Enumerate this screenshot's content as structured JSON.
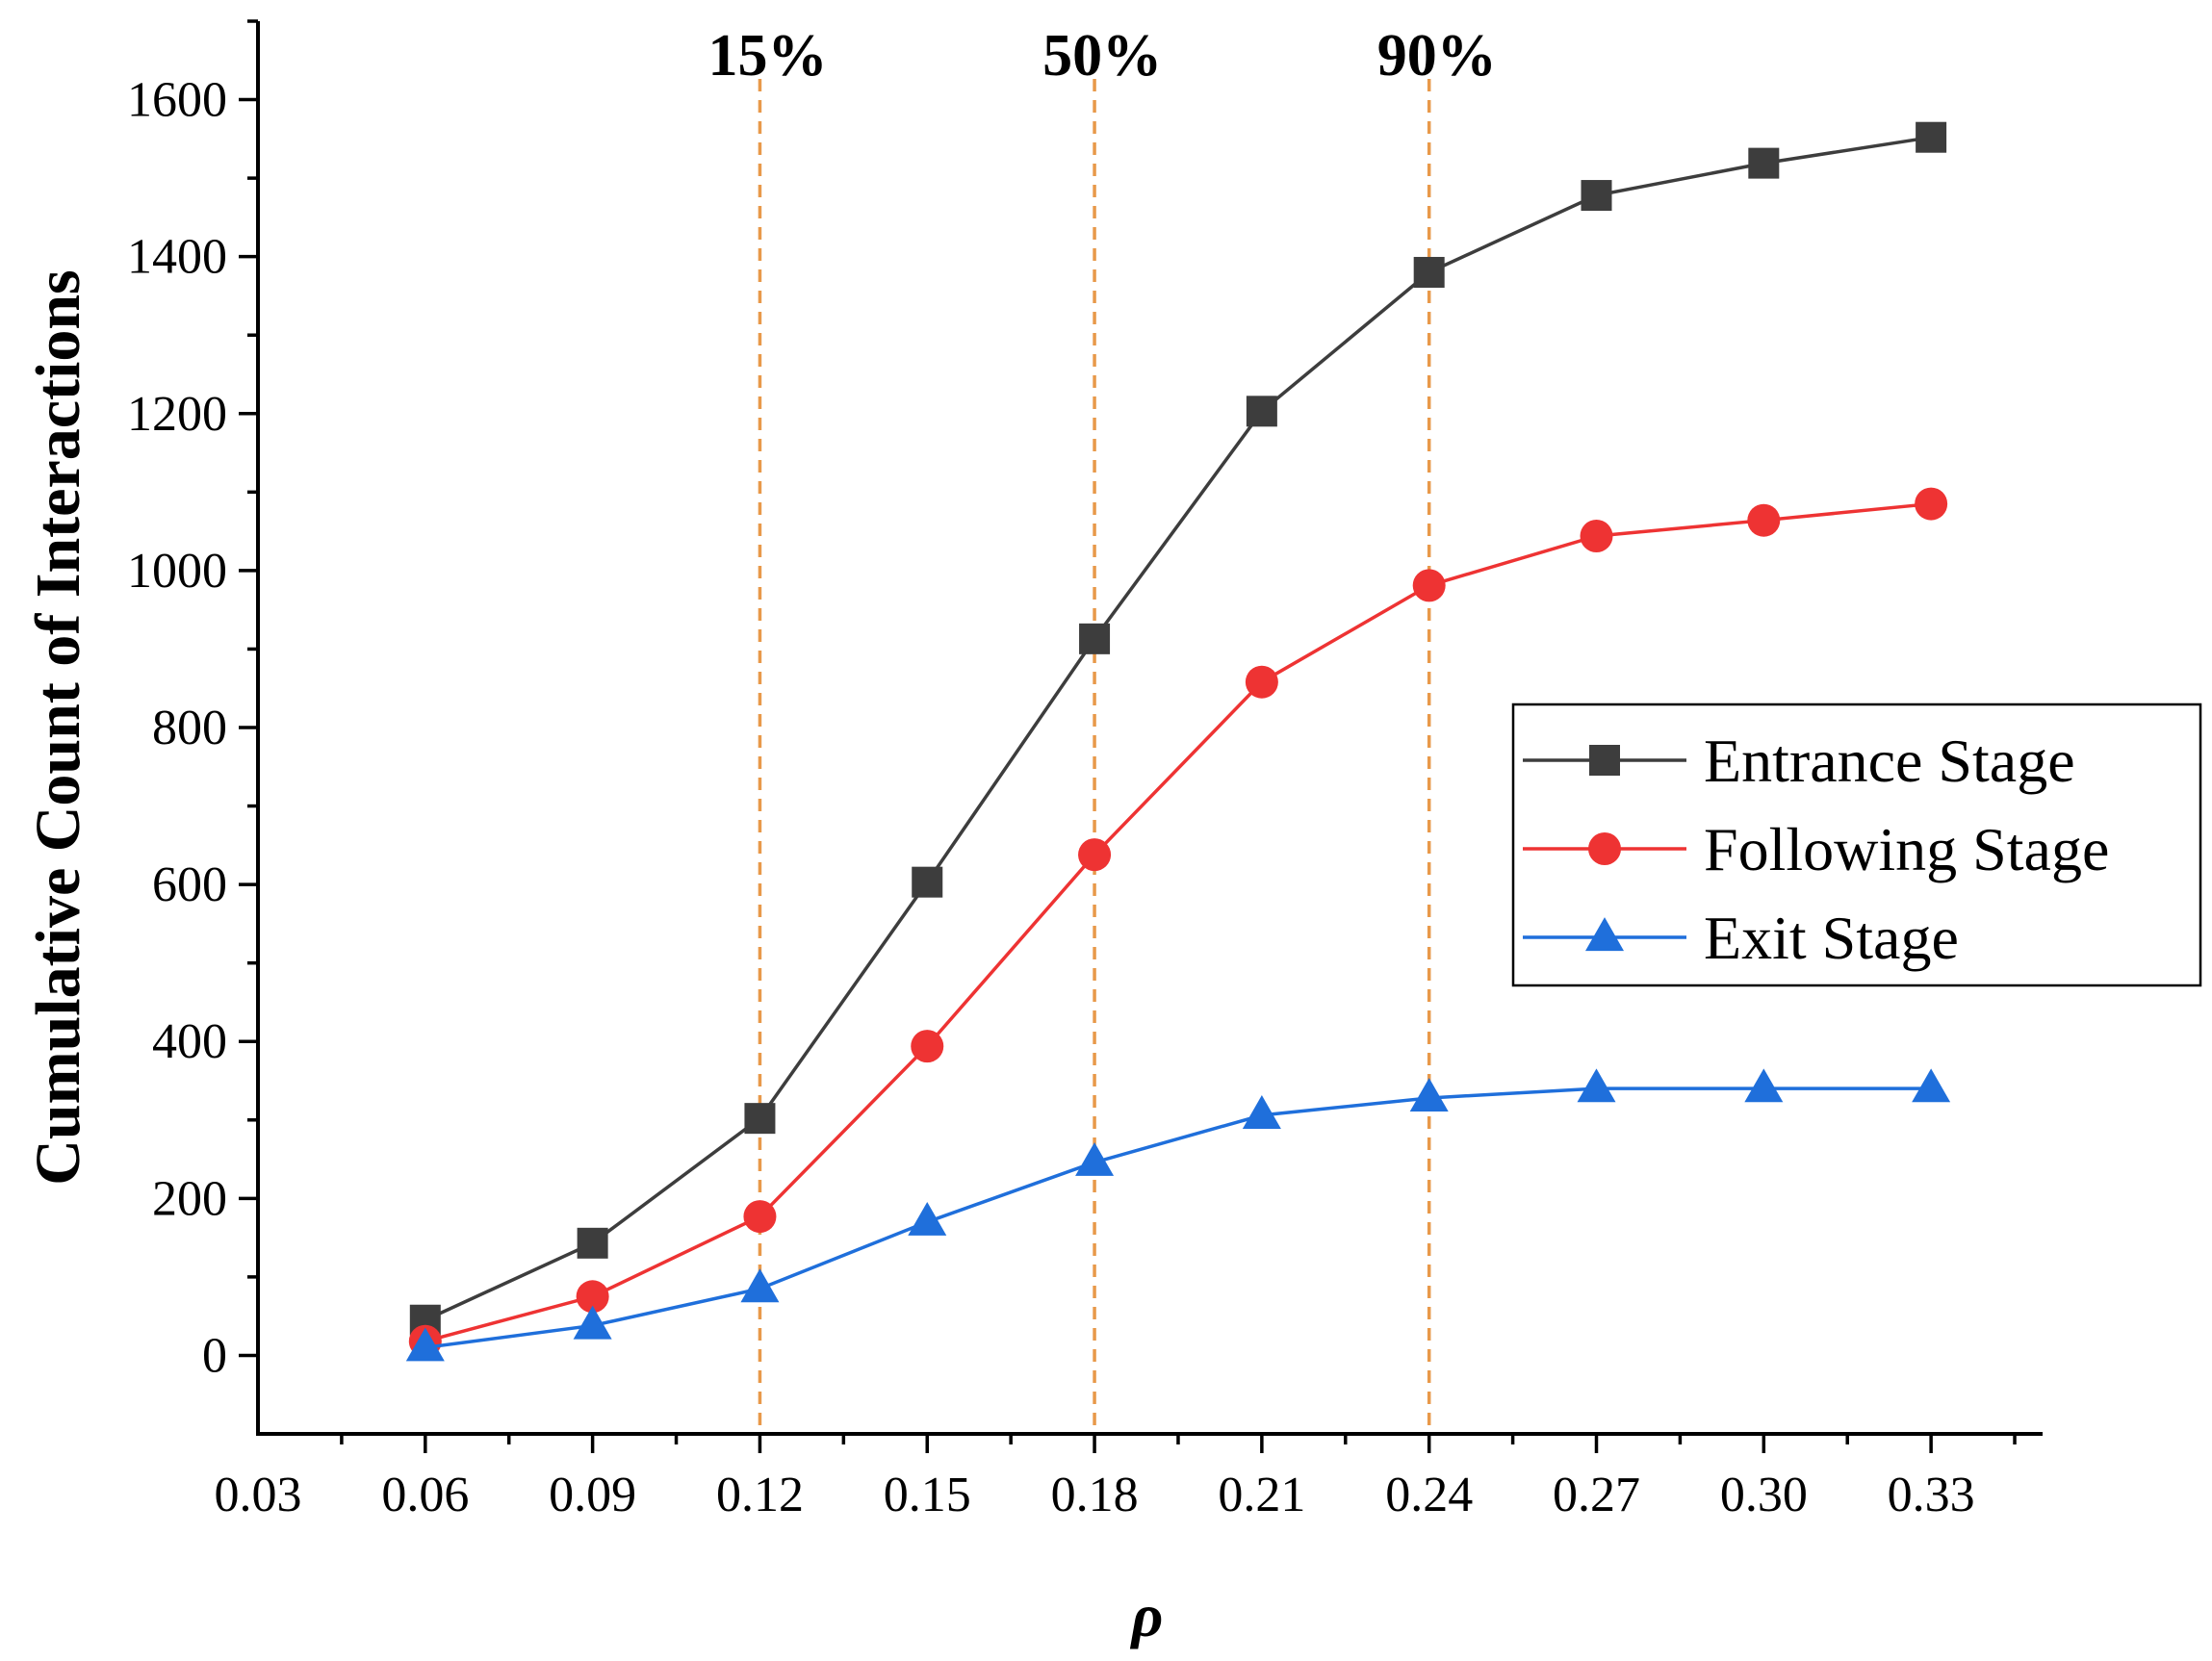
{
  "chart_data": {
    "type": "line",
    "title": "",
    "xlabel": "ρ",
    "ylabel": "Cumulative Count of Interactions",
    "xlim": [
      0.03,
      0.35
    ],
    "ylim": [
      -100,
      1700
    ],
    "x_ticks": [
      "0.03",
      "0.06",
      "0.09",
      "0.12",
      "0.15",
      "0.18",
      "0.21",
      "0.24",
      "0.27",
      "0.30",
      "0.33"
    ],
    "y_ticks": [
      "0",
      "200",
      "400",
      "600",
      "800",
      "1000",
      "1200",
      "1400",
      "1600"
    ],
    "x": [
      0.06,
      0.09,
      0.12,
      0.15,
      0.18,
      0.21,
      0.24,
      0.27,
      0.3,
      0.33
    ],
    "series": [
      {
        "name": "Entrance Stage",
        "marker": "square",
        "color": "#3d3d3d",
        "values": [
          45,
          143,
          302,
          603,
          913,
          1203,
          1380,
          1478,
          1519,
          1552
        ]
      },
      {
        "name": "Following Stage",
        "marker": "circle",
        "color": "#ee3333",
        "values": [
          18,
          75,
          177,
          394,
          638,
          858,
          981,
          1044,
          1064,
          1085
        ]
      },
      {
        "name": "Exit Stage",
        "marker": "triangle",
        "color": "#1f6fdb",
        "values": [
          10,
          38,
          85,
          170,
          246,
          306,
          328,
          340,
          340,
          340
        ]
      }
    ],
    "annotations": [
      {
        "x": 0.12,
        "label": "15%"
      },
      {
        "x": 0.18,
        "label": "50%"
      },
      {
        "x": 0.24,
        "label": "90%"
      }
    ],
    "annotation_color": "#e8994a",
    "legend_position": "right-middle",
    "grid": false
  }
}
